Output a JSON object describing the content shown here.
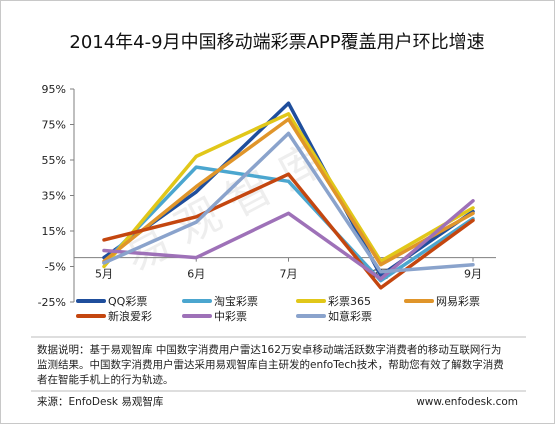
{
  "chart_data": {
    "type": "line",
    "title": "2014年4-9月中国移动端彩票APP覆盖用户环比增速",
    "categories": [
      "5月",
      "6月",
      "7月",
      "8月",
      "9月"
    ],
    "yticks": [
      "95%",
      "75%",
      "55%",
      "35%",
      "15%",
      "-5%",
      "-25%"
    ],
    "ylim": [
      -25,
      95
    ],
    "grid": false,
    "legend_position": "bottom",
    "series": [
      {
        "name": "QQ彩票",
        "color": "#1f4e9c",
        "values": [
          0,
          37,
          87,
          -10,
          26
        ]
      },
      {
        "name": "淘宝彩票",
        "color": "#4ba6cf",
        "values": [
          -3,
          51,
          43,
          -13,
          22
        ]
      },
      {
        "name": "彩票365",
        "color": "#e1c719",
        "values": [
          -5,
          57,
          81,
          -2,
          28
        ]
      },
      {
        "name": "网易彩票",
        "color": "#e0952a",
        "values": [
          -2,
          40,
          78,
          -4,
          25
        ]
      },
      {
        "name": "新浪爱彩",
        "color": "#c4460f",
        "values": [
          10,
          23,
          47,
          -17,
          21
        ]
      },
      {
        "name": "中彩票",
        "color": "#9e71b8",
        "values": [
          4,
          0,
          25,
          -12,
          32
        ]
      },
      {
        "name": "如意彩票",
        "color": "#8aa3cc",
        "values": [
          -3,
          20,
          70,
          -8,
          -4
        ]
      }
    ]
  },
  "watermark": "易观智库",
  "note": {
    "lines": [
      "数据说明：基于易观智库 中国数字消费用户雷达162万安卓移动端活跃数字消费者的移动互联网行为",
      "监测结果。中国数字消费用户雷达采用易观智库自主研发的enfoTech技术，帮助您有效了解数字消费",
      "者在智能手机上的行为轨迹。"
    ]
  },
  "source": "来源：EnfoDesk 易观智库",
  "website": "www.enfodesk.com"
}
